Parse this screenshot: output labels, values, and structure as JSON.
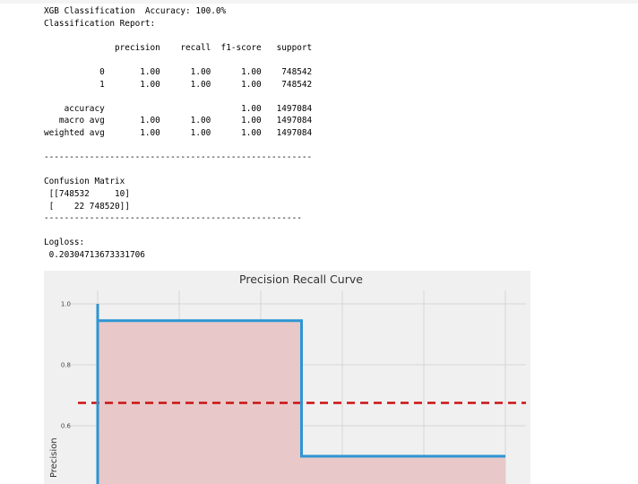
{
  "output": {
    "lines": [
      "XGB Classification  Accuracy: 100.0%",
      "Classification Report:",
      "",
      "              precision    recall  f1-score   support",
      "",
      "           0       1.00      1.00      1.00    748542",
      "           1       1.00      1.00      1.00    748542",
      "",
      "    accuracy                           1.00   1497084",
      "   macro avg       1.00      1.00      1.00   1497084",
      "weighted avg       1.00      1.00      1.00   1497084",
      "",
      "-----------------------------------------------------",
      "",
      "Confusion Matrix",
      " [[748532     10]",
      " [    22 748520]]",
      "---------------------------------------------------",
      "",
      "Logloss:",
      " 0.20304713673331706"
    ]
  },
  "chart_data": {
    "type": "line",
    "title": "Precision Recall Curve",
    "xlabel": "",
    "ylabel": "Precision",
    "yticks": [
      "1.0",
      "0.8",
      "0.6"
    ],
    "series": [
      {
        "x": [
          0.0,
          0.0,
          0.5,
          0.5,
          1.0
        ],
        "y": [
          1.0,
          0.945,
          0.945,
          0.5,
          0.5
        ],
        "fill": true
      }
    ],
    "baseline_y": 0.675,
    "grid": true,
    "colors": {
      "line": "#2d95d2",
      "fill": "#e8c8c8",
      "baseline": "#cc1111",
      "background": "#f0f0f0",
      "grid": "#d6d6d6"
    }
  }
}
